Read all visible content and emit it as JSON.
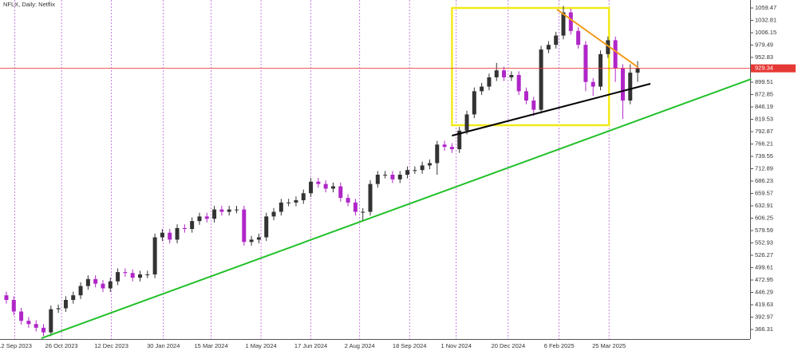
{
  "chart_data": {
    "type": "candlestick",
    "title": "NFLX, Daily:  Netflix",
    "up_color": "#333333",
    "down_color": "#b026c8",
    "x": [
      "2023-09-04",
      "2023-09-11",
      "2023-09-18",
      "2023-09-25",
      "2023-10-02",
      "2023-10-09",
      "2023-10-16",
      "2023-10-23",
      "2023-10-30",
      "2023-11-06",
      "2023-11-13",
      "2023-11-20",
      "2023-11-27",
      "2023-12-04",
      "2023-12-11",
      "2023-12-18",
      "2023-12-25",
      "2024-01-01",
      "2024-01-08",
      "2024-01-15",
      "2024-01-22",
      "2024-01-29",
      "2024-02-05",
      "2024-02-12",
      "2024-02-19",
      "2024-02-26",
      "2024-03-04",
      "2024-03-11",
      "2024-03-18",
      "2024-03-25",
      "2024-04-01",
      "2024-04-08",
      "2024-04-15",
      "2024-04-22",
      "2024-04-29",
      "2024-05-06",
      "2024-05-13",
      "2024-05-20",
      "2024-05-27",
      "2024-06-03",
      "2024-06-10",
      "2024-06-17",
      "2024-06-24",
      "2024-07-01",
      "2024-07-08",
      "2024-07-15",
      "2024-07-22",
      "2024-07-29",
      "2024-08-05",
      "2024-08-12",
      "2024-08-19",
      "2024-08-26",
      "2024-09-02",
      "2024-09-09",
      "2024-09-16",
      "2024-09-23",
      "2024-09-30",
      "2024-10-07",
      "2024-10-14",
      "2024-10-21",
      "2024-10-28",
      "2024-11-04",
      "2024-11-11",
      "2024-11-18",
      "2024-11-25",
      "2024-12-02",
      "2024-12-09",
      "2024-12-16",
      "2024-12-23",
      "2024-12-30",
      "2025-01-06",
      "2025-01-13",
      "2025-01-20",
      "2025-01-27",
      "2025-02-03",
      "2025-02-10",
      "2025-02-17",
      "2025-02-24",
      "2025-03-03",
      "2025-03-10",
      "2025-03-17",
      "2025-03-24",
      "2025-03-31",
      "2025-04-07",
      "2025-04-14",
      "2025-04-21"
    ],
    "open": [
      440,
      430,
      405,
      385,
      378,
      370,
      360,
      410,
      412,
      430,
      440,
      460,
      475,
      465,
      455,
      470,
      490,
      488,
      478,
      485,
      485,
      565,
      575,
      560,
      585,
      583,
      600,
      610,
      605,
      625,
      620,
      625,
      625,
      555,
      560,
      565,
      610,
      620,
      640,
      640,
      645,
      660,
      685,
      680,
      670,
      675,
      650,
      640,
      620,
      620,
      680,
      700,
      700,
      690,
      700,
      710,
      710,
      720,
      725,
      765,
      760,
      755,
      795,
      830,
      880,
      890,
      910,
      925,
      910,
      915,
      880,
      860,
      840,
      970,
      980,
      1000,
      1050,
      1010,
      980,
      900,
      890,
      960,
      990,
      930,
      860,
      920
    ],
    "high": [
      448,
      438,
      413,
      393,
      386,
      378,
      418,
      420,
      438,
      448,
      468,
      483,
      483,
      473,
      478,
      498,
      498,
      496,
      493,
      493,
      573,
      583,
      583,
      593,
      593,
      608,
      618,
      618,
      633,
      633,
      633,
      633,
      633,
      568,
      573,
      618,
      628,
      648,
      648,
      653,
      668,
      693,
      693,
      688,
      683,
      683,
      658,
      648,
      628,
      688,
      708,
      708,
      708,
      708,
      718,
      718,
      728,
      733,
      773,
      773,
      768,
      803,
      838,
      888,
      898,
      918,
      941,
      933,
      923,
      923,
      888,
      868,
      978,
      988,
      1008,
      1064,
      1058,
      1018,
      988,
      908,
      968,
      998,
      998,
      938,
      938,
      945
    ],
    "low": [
      422,
      397,
      377,
      370,
      362,
      352,
      352,
      402,
      404,
      422,
      432,
      452,
      457,
      447,
      447,
      462,
      480,
      470,
      470,
      477,
      477,
      557,
      552,
      552,
      575,
      575,
      592,
      597,
      597,
      612,
      612,
      617,
      547,
      547,
      552,
      557,
      602,
      612,
      632,
      632,
      637,
      652,
      672,
      662,
      662,
      642,
      632,
      612,
      600,
      612,
      672,
      692,
      682,
      682,
      692,
      702,
      702,
      712,
      700,
      752,
      747,
      747,
      787,
      822,
      872,
      882,
      902,
      902,
      902,
      872,
      852,
      827,
      832,
      962,
      972,
      992,
      1002,
      972,
      880,
      870,
      882,
      952,
      900,
      820,
      852,
      900
    ],
    "close": [
      430,
      405,
      385,
      378,
      370,
      360,
      410,
      412,
      430,
      440,
      460,
      475,
      465,
      455,
      470,
      490,
      488,
      478,
      485,
      485,
      565,
      575,
      560,
      585,
      583,
      600,
      610,
      605,
      625,
      620,
      625,
      625,
      555,
      560,
      565,
      610,
      620,
      640,
      640,
      645,
      660,
      685,
      680,
      670,
      675,
      650,
      640,
      620,
      620,
      680,
      700,
      700,
      690,
      700,
      710,
      710,
      720,
      725,
      765,
      760,
      755,
      795,
      830,
      880,
      890,
      910,
      925,
      910,
      915,
      880,
      860,
      840,
      970,
      980,
      1000,
      1050,
      1010,
      980,
      900,
      890,
      960,
      990,
      930,
      860,
      920,
      930
    ],
    "ylim": [
      345.7,
      1076.7
    ],
    "yticks": [
      1059.47,
      1032.81,
      1006.15,
      979.49,
      952.83,
      899.51,
      872.85,
      846.19,
      819.53,
      792.87,
      766.21,
      739.55,
      712.89,
      686.23,
      659.57,
      632.91,
      606.25,
      579.59,
      552.93,
      526.27,
      499.61,
      472.95,
      446.29,
      419.63,
      392.97,
      366.31
    ],
    "xlim": [
      "2023-08-29",
      "2025-08-05"
    ],
    "xticks": [
      {
        "value": "2023-09-12",
        "label": "12 Sep 2023"
      },
      {
        "value": "2023-10-26",
        "label": "26 Oct 2023"
      },
      {
        "value": "2023-12-12",
        "label": "12 Dec 2023"
      },
      {
        "value": "2024-01-30",
        "label": "30 Jan 2024"
      },
      {
        "value": "2024-03-15",
        "label": "15 Mar 2024"
      },
      {
        "value": "2024-05-01",
        "label": "1 May 2024"
      },
      {
        "value": "2024-06-17",
        "label": "17 Jun 2024"
      },
      {
        "value": "2024-08-02",
        "label": "2 Aug 2024"
      },
      {
        "value": "2024-09-18",
        "label": "18 Sep 2024"
      },
      {
        "value": "2024-11-01",
        "label": "1 Nov 2024"
      },
      {
        "value": "2024-12-20",
        "label": "20 Dec 2024"
      },
      {
        "value": "2025-02-06",
        "label": "6 Feb 2025"
      },
      {
        "value": "2025-03-25",
        "label": "25 Mar 2025"
      }
    ],
    "last_price": 929.34,
    "last_price_color": "#e53935",
    "lines": [
      {
        "color": "#22c02a",
        "x1": "2023-10-07",
        "y1": 347.4,
        "x2": "2025-08-06",
        "y2": 906.4
      },
      {
        "color": "#000000",
        "x1": "2024-10-28",
        "y1": 784.3,
        "x2": "2025-05-03",
        "y2": 896.1
      },
      {
        "color": "#f29a1a",
        "x1": "2025-02-04",
        "y1": 1056.1,
        "x2": "2025-04-21",
        "y2": 932.2
      }
    ],
    "boxes": [
      {
        "color": "#f2ea1a",
        "x1": "2024-10-28",
        "y1": 1059.5,
        "x2": "2025-03-25",
        "y2": 806.7
      }
    ]
  }
}
